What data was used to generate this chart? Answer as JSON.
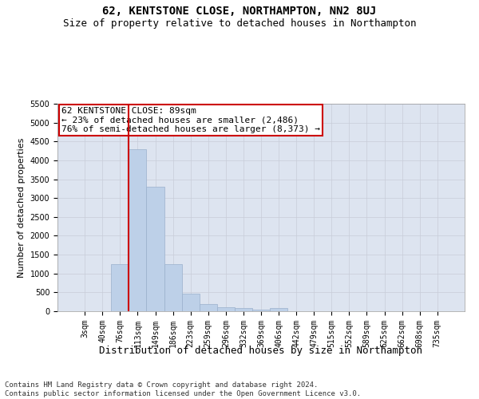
{
  "title": "62, KENTSTONE CLOSE, NORTHAMPTON, NN2 8UJ",
  "subtitle": "Size of property relative to detached houses in Northampton",
  "xlabel": "Distribution of detached houses by size in Northampton",
  "ylabel": "Number of detached properties",
  "footer_line1": "Contains HM Land Registry data © Crown copyright and database right 2024.",
  "footer_line2": "Contains public sector information licensed under the Open Government Licence v3.0.",
  "annotation_title": "62 KENTSTONE CLOSE: 89sqm",
  "annotation_line2": "← 23% of detached houses are smaller (2,486)",
  "annotation_line3": "76% of semi-detached houses are larger (8,373) →",
  "bar_color": "#bdd0e8",
  "bar_edge_color": "#9ab0cc",
  "vline_color": "#cc0000",
  "annotation_box_color": "#cc0000",
  "categories": [
    "3sqm",
    "40sqm",
    "76sqm",
    "113sqm",
    "149sqm",
    "186sqm",
    "223sqm",
    "259sqm",
    "296sqm",
    "332sqm",
    "369sqm",
    "406sqm",
    "442sqm",
    "479sqm",
    "515sqm",
    "552sqm",
    "589sqm",
    "625sqm",
    "662sqm",
    "698sqm",
    "735sqm"
  ],
  "values": [
    0,
    0,
    1250,
    4300,
    3300,
    1250,
    475,
    200,
    100,
    75,
    50,
    75,
    0,
    0,
    0,
    0,
    0,
    0,
    0,
    0,
    0
  ],
  "ylim": [
    0,
    5500
  ],
  "yticks": [
    0,
    500,
    1000,
    1500,
    2000,
    2500,
    3000,
    3500,
    4000,
    4500,
    5000,
    5500
  ],
  "vline_x_index": 2.5,
  "grid_color": "#c8ccd8",
  "bg_color": "#dde4f0",
  "title_fontsize": 10,
  "subtitle_fontsize": 9,
  "xlabel_fontsize": 9,
  "ylabel_fontsize": 8,
  "tick_fontsize": 7,
  "annotation_fontsize": 8,
  "footer_fontsize": 6.5
}
